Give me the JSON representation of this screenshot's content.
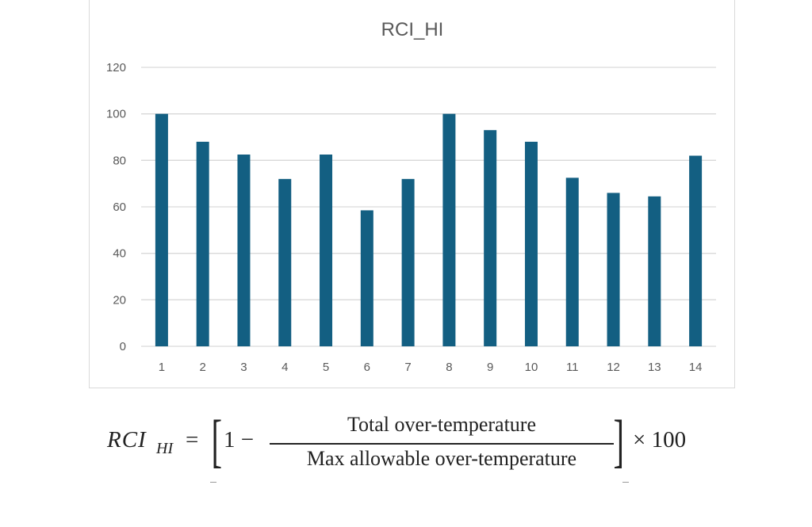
{
  "chart_data": {
    "type": "bar",
    "title": "RCI_HI",
    "xlabel": "",
    "ylabel": "",
    "categories": [
      "1",
      "2",
      "3",
      "4",
      "5",
      "6",
      "7",
      "8",
      "9",
      "10",
      "11",
      "12",
      "13",
      "14"
    ],
    "series": [
      {
        "values": [
          100,
          88,
          82.5,
          72,
          82.5,
          58.5,
          72,
          100,
          93,
          88,
          72.5,
          66,
          64.5,
          82
        ]
      }
    ],
    "ylim": [
      0,
      120
    ],
    "yticks": [
      "0",
      "20",
      "40",
      "60",
      "80",
      "100",
      "120"
    ],
    "grid": true,
    "legend": "none",
    "bar_color": "#135f82",
    "grid_color": "#d9d9d9",
    "text_color": "#595959"
  },
  "formula": {
    "lhs": "RCI",
    "subscript": "HI",
    "equals": "=",
    "left_bracket": "[",
    "one_minus": "1 −",
    "numerator": "Total over-temperature",
    "denominator": "Max allowable over-temperature",
    "right_bracket": "]",
    "times": "× 100"
  }
}
